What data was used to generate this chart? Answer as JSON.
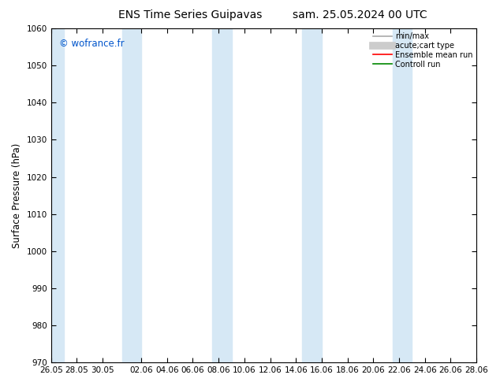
{
  "title_left": "ENS Time Series Guipavas",
  "title_right": "sam. 25.05.2024 00 UTC",
  "ylabel": "Surface Pressure (hPa)",
  "ylim": [
    970,
    1060
  ],
  "yticks": [
    970,
    980,
    990,
    1000,
    1010,
    1020,
    1030,
    1040,
    1050,
    1060
  ],
  "xtick_labels": [
    "26.05",
    "28.05",
    "30.05",
    "02.06",
    "04.06",
    "06.06",
    "08.06",
    "10.06",
    "12.06",
    "14.06",
    "16.06",
    "18.06",
    "20.06",
    "22.06",
    "24.06",
    "26.06",
    "28.06"
  ],
  "xtick_positions": [
    0,
    2,
    4,
    7,
    9,
    11,
    13,
    15,
    17,
    19,
    21,
    23,
    25,
    27,
    29,
    31,
    33
  ],
  "band_color": "#d6e8f5",
  "watermark": "© wofrance.fr",
  "watermark_color": "#0055cc",
  "background_color": "#ffffff",
  "plot_bg_color": "#ffffff",
  "legend_items": [
    {
      "label": "min/max",
      "color": "#aaaaaa",
      "lw": 1.2
    },
    {
      "label": "acute;cart type",
      "color": "#cccccc",
      "lw": 7
    },
    {
      "label": "Ensemble mean run",
      "color": "#ff0000",
      "lw": 1.2
    },
    {
      "label": "Controll run",
      "color": "#008800",
      "lw": 1.2
    }
  ],
  "title_fontsize": 10,
  "tick_fontsize": 7.5,
  "ylabel_fontsize": 8.5
}
